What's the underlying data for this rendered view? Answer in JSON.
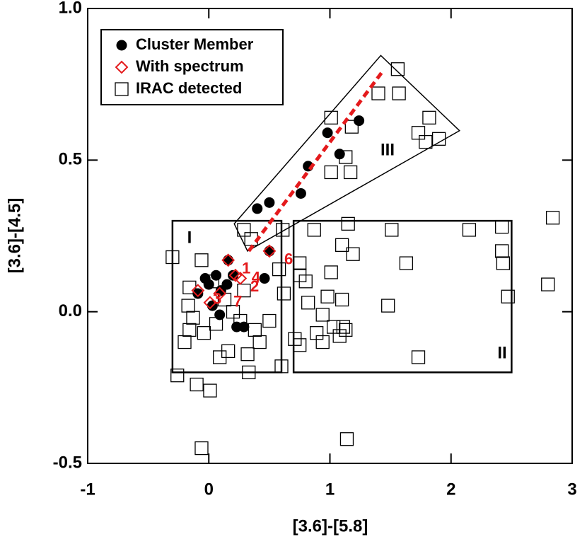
{
  "chart_data": {
    "type": "scatter",
    "x_label": "[3.6]-[5.8]",
    "y_label": "[3.6]-[4.5]",
    "xlim": [
      -1,
      3
    ],
    "xticks": [
      -1,
      0,
      1,
      2,
      3
    ],
    "ylim": [
      -0.5,
      1.0
    ],
    "yticks": [
      {
        "value": -0.5,
        "label": "-0.5"
      },
      {
        "value": 0,
        "label": "0.0"
      },
      {
        "value": 0.5,
        "label": "0.5"
      },
      {
        "value": 1.0,
        "label": "1.0"
      }
    ],
    "series": [
      {
        "name": "IRAC detected",
        "marker": "square",
        "color": "#000000",
        "x": [
          2.84,
          2.8,
          1.56,
          1.57,
          1.4,
          1.82,
          1.73,
          1.9,
          1.79,
          1.01,
          1.18,
          1.01,
          1.17,
          1.13,
          0.87,
          1.15,
          1.51,
          2.15,
          2.42,
          2.42,
          2.43,
          2.47,
          1.63,
          1.1,
          1.19,
          0.75,
          0.75,
          0.8,
          1.01,
          0.98,
          1.1,
          0.82,
          0.94,
          1.48,
          0.89,
          0.94,
          1.03,
          1.11,
          1.13,
          1.08,
          0.75,
          0.71,
          1.73,
          1.14,
          -0.06,
          -0.26,
          -0.1,
          0.01,
          0.33,
          0.6,
          -0.3,
          -0.06,
          0.29,
          0.61,
          0.62,
          0.42,
          0.09,
          0.16,
          -0.2,
          -0.16,
          -0.16,
          0.5,
          0.32,
          0.35,
          0.58,
          -0.17,
          -0.13,
          0.06,
          0.2,
          0.26,
          0.38,
          -0.04,
          0.13,
          0.03,
          0.29
        ],
        "y": [
          0.31,
          0.09,
          0.8,
          0.72,
          0.72,
          0.64,
          0.59,
          0.57,
          0.56,
          0.64,
          0.61,
          0.46,
          0.46,
          0.51,
          0.27,
          0.29,
          0.27,
          0.27,
          0.28,
          0.2,
          0.16,
          0.05,
          0.16,
          0.22,
          0.19,
          0.16,
          0.12,
          0.1,
          0.13,
          0.05,
          0.04,
          0.03,
          -0.01,
          0.02,
          -0.07,
          -0.1,
          -0.05,
          -0.05,
          -0.06,
          -0.08,
          -0.11,
          -0.09,
          -0.15,
          -0.42,
          -0.45,
          -0.21,
          -0.24,
          -0.26,
          -0.2,
          -0.18,
          0.18,
          0.17,
          0.27,
          0.27,
          0.06,
          -0.1,
          -0.15,
          -0.13,
          -0.1,
          -0.06,
          0.08,
          -0.03,
          -0.14,
          0.24,
          0.14,
          0.02,
          -0.02,
          -0.04,
          0.0,
          -0.03,
          -0.06,
          -0.07,
          0.04,
          0.1,
          0.07
        ]
      },
      {
        "name": "Cluster Member",
        "marker": "circle",
        "color": "#000000",
        "x": [
          1.24,
          0.98,
          1.08,
          0.82,
          0.76,
          0.5,
          0.4,
          0.5,
          0.16,
          0.46,
          -0.03,
          0.06,
          0.15,
          0.2,
          -0.09,
          0.03,
          0.09,
          0.23,
          0.29,
          0.1,
          0.0
        ],
        "y": [
          0.63,
          0.59,
          0.52,
          0.48,
          0.39,
          0.36,
          0.34,
          0.2,
          0.17,
          0.11,
          0.11,
          0.12,
          0.09,
          0.12,
          0.06,
          0.02,
          -0.01,
          -0.05,
          -0.05,
          0.07,
          0.09
        ]
      },
      {
        "name": "With spectrum",
        "marker": "diamond",
        "color": "#e41a1c",
        "x": [
          -0.09,
          0.01,
          0.09,
          0.22,
          0.26,
          0.16,
          0.5
        ],
        "y": [
          0.07,
          0.03,
          0.06,
          0.12,
          0.11,
          0.17,
          0.2
        ]
      }
    ],
    "regions": [
      {
        "label": "I",
        "x": [
          -0.3,
          0.6,
          0.6,
          -0.3
        ],
        "y": [
          -0.2,
          -0.2,
          0.3,
          0.3
        ]
      },
      {
        "label": "II",
        "x": [
          0.7,
          2.5,
          2.5,
          0.7
        ],
        "y": [
          -0.2,
          -0.2,
          0.3,
          0.3
        ]
      },
      {
        "label": "III",
        "x": [
          0.21,
          1.42,
          2.07,
          0.32
        ],
        "y": [
          0.29,
          0.845,
          0.597,
          0.2
        ]
      }
    ],
    "trend_line": {
      "x": [
        0.33,
        1.43
      ],
      "y": [
        0.2,
        0.79
      ],
      "color": "#e41a1c"
    },
    "annotations": [
      {
        "text": "6",
        "x": 0.6,
        "y": 0.17
      },
      {
        "text": "4",
        "x": 0.33,
        "y": 0.11
      },
      {
        "text": "1",
        "x": 0.25,
        "y": 0.14
      },
      {
        "text": "2",
        "x": 0.32,
        "y": 0.08
      },
      {
        "text": "3",
        "x": 0.01,
        "y": 0.04
      },
      {
        "text": "7",
        "x": 0.18,
        "y": 0.03
      }
    ]
  }
}
